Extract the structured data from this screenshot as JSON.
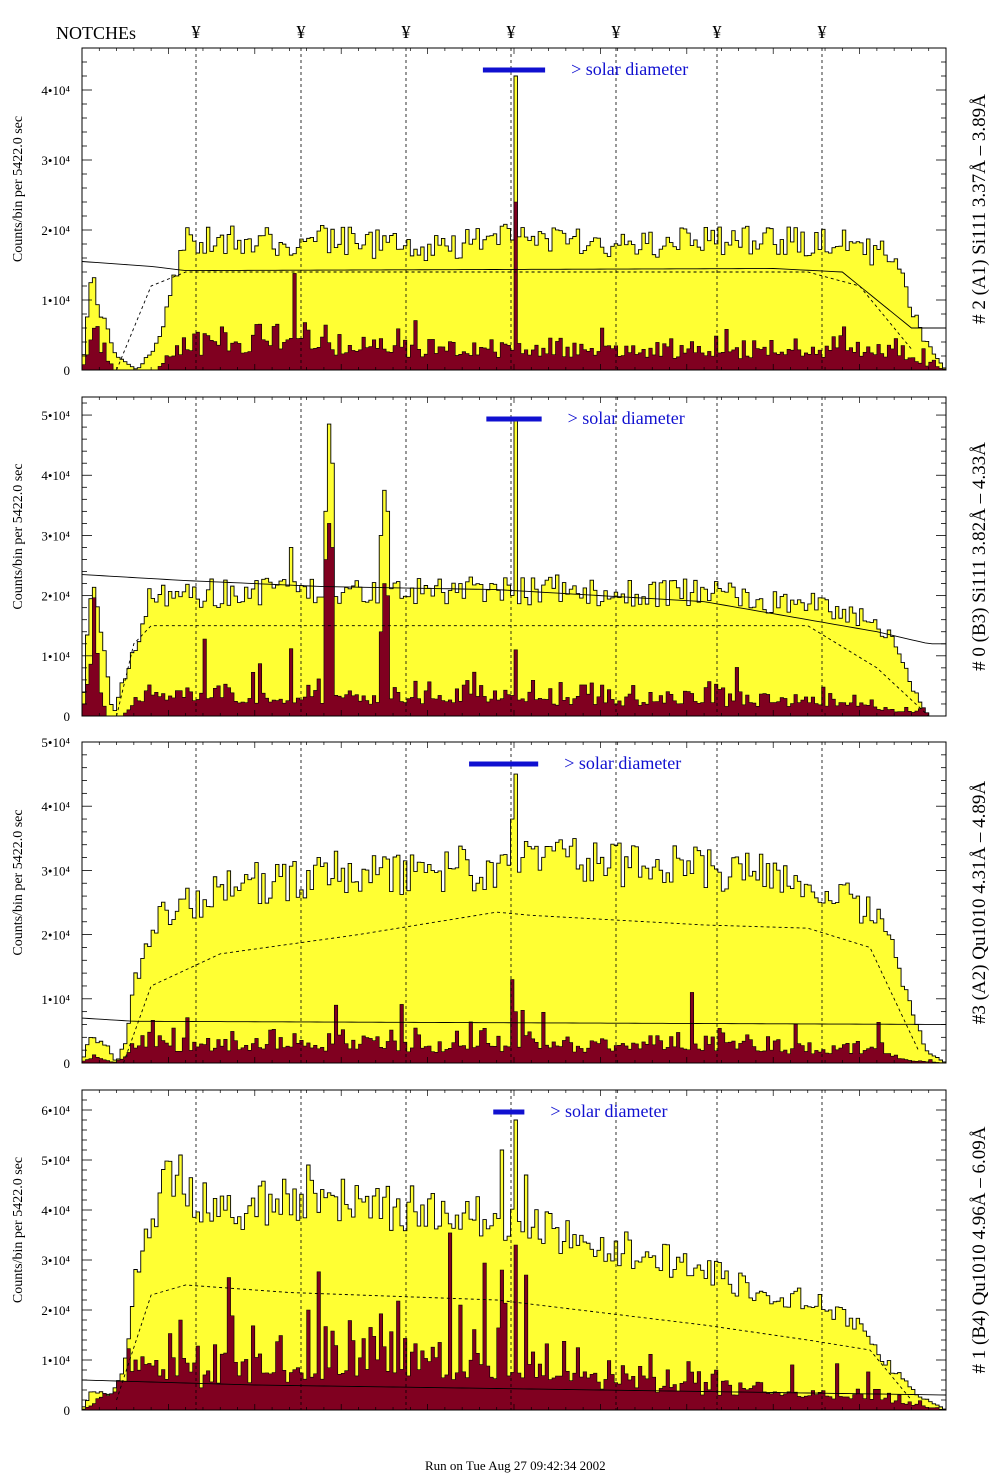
{
  "header": {
    "notches_label": "NOTCHEs",
    "notch_symbol": "¥"
  },
  "footer": {
    "run_text": "Run on Tue Aug 27 09:42:34 2002"
  },
  "colors": {
    "total": "#ffff33",
    "component": "#800020",
    "outline": "#000000",
    "solar_bar": "#1010d0"
  },
  "chart_data": [
    {
      "type": "histogram",
      "ylabel": "Counts/bin per   5422.0 sec",
      "right_label": "# 2 (A1) Si111  3.37Å – 3.89Å",
      "solar_label": "> solar diameter",
      "yticks": [
        {
          "value": 0,
          "label": "0"
        },
        {
          "value": 10000,
          "label": "1•10⁴"
        },
        {
          "value": 20000,
          "label": "2•10⁴"
        },
        {
          "value": 30000,
          "label": "3•10⁴"
        },
        {
          "value": 40000,
          "label": "4•10⁴"
        }
      ],
      "ylim": [
        0,
        46000
      ],
      "nbins": 250,
      "seed": 11,
      "envelope": [
        [
          0,
          0
        ],
        [
          3,
          14000
        ],
        [
          5,
          9000
        ],
        [
          10,
          2000
        ],
        [
          16,
          0
        ],
        [
          22,
          4000
        ],
        [
          30,
          18500
        ],
        [
          70,
          18500
        ],
        [
          100,
          17500
        ],
        [
          130,
          19000
        ],
        [
          160,
          18000
        ],
        [
          190,
          18500
        ],
        [
          220,
          18000
        ],
        [
          235,
          16000
        ],
        [
          240,
          9000
        ],
        [
          244,
          4000
        ],
        [
          250,
          0
        ]
      ],
      "comp_env": [
        [
          0,
          0
        ],
        [
          3,
          8000
        ],
        [
          5,
          5000
        ],
        [
          9,
          0
        ],
        [
          22,
          0
        ],
        [
          25,
          3500
        ],
        [
          40,
          5000
        ],
        [
          100,
          3500
        ],
        [
          150,
          3000
        ],
        [
          200,
          3500
        ],
        [
          235,
          4000
        ],
        [
          240,
          2000
        ],
        [
          250,
          0
        ]
      ],
      "peaks": [
        {
          "bin": 125,
          "height": 42000,
          "comp": 24000
        }
      ],
      "smooth": [
        [
          0,
          15500
        ],
        [
          20,
          14800
        ],
        [
          30,
          14200
        ],
        [
          200,
          14500
        ],
        [
          220,
          14000
        ],
        [
          240,
          6000
        ],
        [
          250,
          6000
        ]
      ],
      "dash": [
        [
          10,
          0
        ],
        [
          20,
          12000
        ],
        [
          30,
          14000
        ],
        [
          210,
          14000
        ],
        [
          225,
          12000
        ],
        [
          240,
          3000
        ]
      ],
      "solar_bar_bins": [
        116,
        134
      ]
    },
    {
      "type": "histogram",
      "ylabel": "Counts/bin per   5422.0 sec",
      "right_label": "# 0 (B3) Si111  3.82Å – 4.33Å",
      "solar_label": "> solar diameter",
      "yticks": [
        {
          "value": 0,
          "label": "0"
        },
        {
          "value": 10000,
          "label": "1•10⁴"
        },
        {
          "value": 20000,
          "label": "2•10⁴"
        },
        {
          "value": 30000,
          "label": "3•10⁴"
        },
        {
          "value": 40000,
          "label": "4•10⁴"
        },
        {
          "value": 50000,
          "label": "5•10⁴"
        }
      ],
      "ylim": [
        0,
        53000
      ],
      "nbins": 250,
      "seed": 23,
      "envelope": [
        [
          0,
          0
        ],
        [
          3,
          25000
        ],
        [
          6,
          12000
        ],
        [
          9,
          0
        ],
        [
          12,
          6000
        ],
        [
          20,
          20000
        ],
        [
          70,
          21000
        ],
        [
          130,
          21000
        ],
        [
          180,
          20500
        ],
        [
          220,
          18000
        ],
        [
          235,
          13000
        ],
        [
          240,
          5000
        ],
        [
          245,
          0
        ],
        [
          250,
          0
        ]
      ],
      "comp_env": [
        [
          0,
          0
        ],
        [
          3,
          15000
        ],
        [
          7,
          0
        ],
        [
          12,
          0
        ],
        [
          16,
          4500
        ],
        [
          70,
          4000
        ],
        [
          150,
          3500
        ],
        [
          220,
          3000
        ],
        [
          240,
          500
        ],
        [
          244,
          2000
        ],
        [
          248,
          0
        ],
        [
          250,
          0
        ]
      ],
      "peaks": [
        {
          "bin": 60,
          "height": 28000,
          "comp": 9000
        },
        {
          "bin": 70,
          "height": 34000,
          "comp": 26000
        },
        {
          "bin": 71,
          "height": 48500,
          "comp": 32000
        },
        {
          "bin": 72,
          "height": 42000,
          "comp": 28000
        },
        {
          "bin": 86,
          "height": 30000,
          "comp": 14000
        },
        {
          "bin": 87,
          "height": 37500,
          "comp": 22000
        },
        {
          "bin": 88,
          "height": 34000,
          "comp": 20000
        },
        {
          "bin": 125,
          "height": 49500,
          "comp": 11000
        }
      ],
      "smooth": [
        [
          0,
          23500
        ],
        [
          30,
          22500
        ],
        [
          70,
          21500
        ],
        [
          120,
          21000
        ],
        [
          180,
          19000
        ],
        [
          230,
          14000
        ],
        [
          245,
          12000
        ],
        [
          250,
          12000
        ]
      ],
      "dash": [
        [
          10,
          0
        ],
        [
          15,
          12000
        ],
        [
          20,
          15000
        ],
        [
          210,
          15000
        ],
        [
          230,
          8000
        ],
        [
          245,
          0
        ]
      ],
      "solar_bar_bins": [
        117,
        133
      ]
    },
    {
      "type": "histogram",
      "ylabel": "Counts/bin per   5422.0 sec",
      "right_label": "#3 (A2) Qu1010  4.31Å – 4.89Å",
      "solar_label": "> solar diameter",
      "yticks": [
        {
          "value": 0,
          "label": "0"
        },
        {
          "value": 10000,
          "label": "1•10⁴"
        },
        {
          "value": 20000,
          "label": "2•10⁴"
        },
        {
          "value": 30000,
          "label": "3•10⁴"
        },
        {
          "value": 40000,
          "label": "4•10⁴"
        },
        {
          "value": 50000,
          "label": "5•10⁴"
        }
      ],
      "ylim": [
        0,
        50000
      ],
      "nbins": 250,
      "seed": 37,
      "envelope": [
        [
          0,
          0
        ],
        [
          2,
          4000
        ],
        [
          7,
          3000
        ],
        [
          10,
          0
        ],
        [
          13,
          4000
        ],
        [
          15,
          12000
        ],
        [
          20,
          21000
        ],
        [
          30,
          25000
        ],
        [
          50,
          28000
        ],
        [
          100,
          30000
        ],
        [
          150,
          31500
        ],
        [
          200,
          29000
        ],
        [
          220,
          26000
        ],
        [
          232,
          22000
        ],
        [
          238,
          12000
        ],
        [
          244,
          2000
        ],
        [
          250,
          0
        ]
      ],
      "comp_env": [
        [
          0,
          0
        ],
        [
          3,
          1500
        ],
        [
          10,
          0
        ],
        [
          13,
          2000
        ],
        [
          18,
          5000
        ],
        [
          30,
          3500
        ],
        [
          100,
          3500
        ],
        [
          150,
          3500
        ],
        [
          200,
          3000
        ],
        [
          230,
          2500
        ],
        [
          240,
          500
        ],
        [
          250,
          0
        ]
      ],
      "peaks": [
        {
          "bin": 125,
          "height": 45000,
          "comp": 8000
        },
        {
          "bin": 124,
          "height": 38000,
          "comp": 13000
        },
        {
          "bin": 176,
          "height": 29500,
          "comp": 11000
        },
        {
          "bin": 73,
          "height": 33000,
          "comp": 9000
        }
      ],
      "smooth": [
        [
          0,
          7000
        ],
        [
          15,
          6500
        ],
        [
          250,
          6000
        ]
      ],
      "dash": [
        [
          12,
          0
        ],
        [
          20,
          12000
        ],
        [
          40,
          17000
        ],
        [
          80,
          20000
        ],
        [
          120,
          23500
        ],
        [
          130,
          23000
        ],
        [
          180,
          21500
        ],
        [
          210,
          21000
        ],
        [
          228,
          18000
        ],
        [
          242,
          2000
        ]
      ],
      "solar_bar_bins": [
        112,
        132
      ]
    },
    {
      "type": "histogram",
      "ylabel": "Counts/bin per   5422.0 sec",
      "right_label": "# 1 (B4) Qu1010  4.96Å – 6.09Å",
      "solar_label": "> solar diameter",
      "yticks": [
        {
          "value": 0,
          "label": "0"
        },
        {
          "value": 10000,
          "label": "1•10⁴"
        },
        {
          "value": 20000,
          "label": "2•10⁴"
        },
        {
          "value": 30000,
          "label": "3•10⁴"
        },
        {
          "value": 40000,
          "label": "4•10⁴"
        },
        {
          "value": 50000,
          "label": "5•10⁴"
        },
        {
          "value": 60000,
          "label": "6•10⁴"
        }
      ],
      "ylim": [
        0,
        64000
      ],
      "nbins": 250,
      "seed": 53,
      "envelope": [
        [
          0,
          0
        ],
        [
          3,
          4000
        ],
        [
          8,
          3000
        ],
        [
          12,
          8000
        ],
        [
          16,
          28000
        ],
        [
          20,
          38000
        ],
        [
          25,
          47000
        ],
        [
          30,
          44000
        ],
        [
          40,
          39000
        ],
        [
          60,
          42000
        ],
        [
          80,
          41000
        ],
        [
          100,
          40000
        ],
        [
          125,
          37000
        ],
        [
          150,
          33000
        ],
        [
          170,
          30000
        ],
        [
          190,
          25000
        ],
        [
          210,
          22000
        ],
        [
          225,
          17000
        ],
        [
          232,
          10000
        ],
        [
          238,
          6000
        ],
        [
          242,
          3000
        ],
        [
          250,
          0
        ]
      ],
      "comp_env": [
        [
          0,
          0
        ],
        [
          5,
          3000
        ],
        [
          12,
          8000
        ],
        [
          20,
          14000
        ],
        [
          30,
          9000
        ],
        [
          60,
          11000
        ],
        [
          100,
          13000
        ],
        [
          125,
          12000
        ],
        [
          150,
          8000
        ],
        [
          200,
          5000
        ],
        [
          230,
          3000
        ],
        [
          240,
          1500
        ],
        [
          250,
          0
        ]
      ],
      "peaks": [
        {
          "bin": 125,
          "height": 58000,
          "comp": 33000
        },
        {
          "bin": 121,
          "height": 52000,
          "comp": 28000
        },
        {
          "bin": 128,
          "height": 47000,
          "comp": 27000
        },
        {
          "bin": 65,
          "height": 49000,
          "comp": 20000
        },
        {
          "bin": 28,
          "height": 51000,
          "comp": 18000
        }
      ],
      "smooth": [
        [
          0,
          6000
        ],
        [
          50,
          5000
        ],
        [
          250,
          3000
        ]
      ],
      "dash": [
        [
          10,
          2000
        ],
        [
          20,
          23000
        ],
        [
          30,
          25000
        ],
        [
          60,
          23500
        ],
        [
          120,
          22000
        ],
        [
          180,
          17000
        ],
        [
          210,
          14000
        ],
        [
          228,
          12000
        ],
        [
          240,
          2000
        ]
      ],
      "solar_bar_bins": [
        119,
        128
      ]
    }
  ]
}
